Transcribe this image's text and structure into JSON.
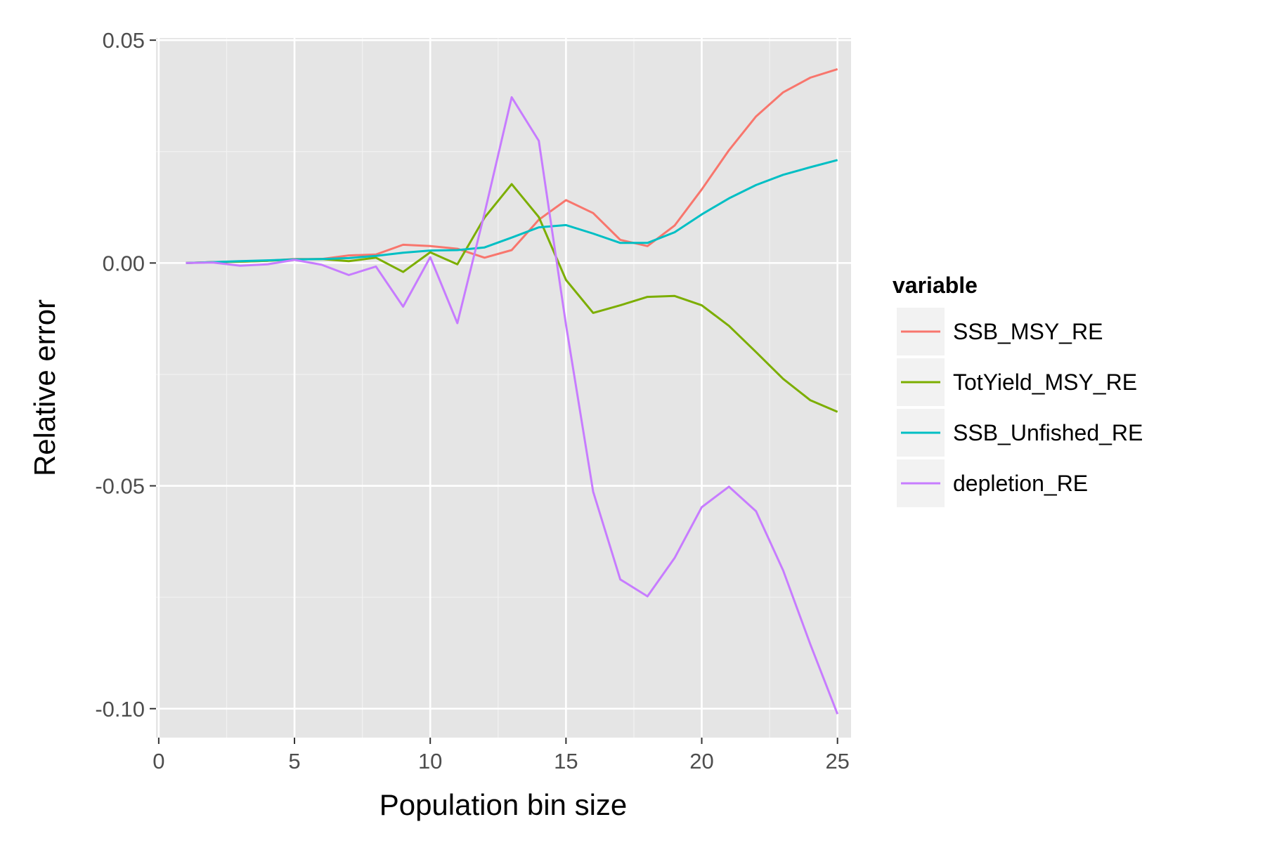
{
  "chart_data": {
    "type": "line",
    "title": "",
    "xlabel": "Population bin size",
    "ylabel": "Relative error",
    "xlim": [
      -0.1,
      25.5
    ],
    "ylim": [
      -0.1065,
      0.0505
    ],
    "x_ticks": [
      0,
      5,
      10,
      15,
      20,
      25
    ],
    "x_tick_labels": [
      "0",
      "5",
      "10",
      "15",
      "20",
      "25"
    ],
    "y_ticks": [
      0.05,
      0.0,
      -0.05,
      -0.1
    ],
    "y_tick_labels": [
      "0.05",
      "0.00",
      "-0.05",
      "-0.10"
    ],
    "grid": true,
    "legend": {
      "title": "variable",
      "position": "right"
    },
    "x": [
      1,
      2,
      3,
      4,
      5,
      6,
      7,
      8,
      9,
      10,
      11,
      12,
      13,
      14,
      15,
      16,
      17,
      18,
      19,
      20,
      21,
      22,
      23,
      24,
      25
    ],
    "series": [
      {
        "name": "SSB_MSY_RE",
        "color": "#F8766D",
        "values": [
          0.0,
          0.0002,
          0.0003,
          0.0005,
          0.0009,
          0.0009,
          0.0017,
          0.0019,
          0.0041,
          0.0038,
          0.0032,
          0.0012,
          0.0029,
          0.0097,
          0.0141,
          0.0112,
          0.0052,
          0.0038,
          0.0084,
          0.0165,
          0.0253,
          0.0329,
          0.0383,
          0.0416,
          0.0435
        ]
      },
      {
        "name": "TotYield_MSY_RE",
        "color": "#7CAE00",
        "values": [
          0.0,
          0.0002,
          0.0003,
          0.0005,
          0.0008,
          0.0009,
          0.0004,
          0.0012,
          -0.002,
          0.0024,
          -0.0003,
          0.0102,
          0.0177,
          0.0103,
          -0.0038,
          -0.0112,
          -0.0095,
          -0.0076,
          -0.0074,
          -0.0095,
          -0.0141,
          -0.02,
          -0.026,
          -0.0308,
          -0.0334
        ]
      },
      {
        "name": "SSB_Unfished_RE",
        "color": "#00BFC4",
        "values": [
          0.0,
          0.0002,
          0.0004,
          0.0006,
          0.0008,
          0.0009,
          0.0011,
          0.0016,
          0.0023,
          0.0028,
          0.0029,
          0.0035,
          0.0057,
          0.008,
          0.0085,
          0.0066,
          0.0045,
          0.0045,
          0.0069,
          0.0109,
          0.0145,
          0.0175,
          0.0198,
          0.0215,
          0.0231
        ]
      },
      {
        "name": "depletion_RE",
        "color": "#C77CFF",
        "values": [
          0.0,
          0.0001,
          -0.0006,
          -0.0003,
          0.0007,
          -0.0004,
          -0.0027,
          -0.0008,
          -0.0098,
          0.0013,
          -0.0135,
          0.0112,
          0.0372,
          0.0274,
          -0.0139,
          -0.0513,
          -0.071,
          -0.0748,
          -0.0662,
          -0.0548,
          -0.0502,
          -0.0557,
          -0.069,
          -0.0856,
          -0.1012
        ]
      }
    ]
  }
}
